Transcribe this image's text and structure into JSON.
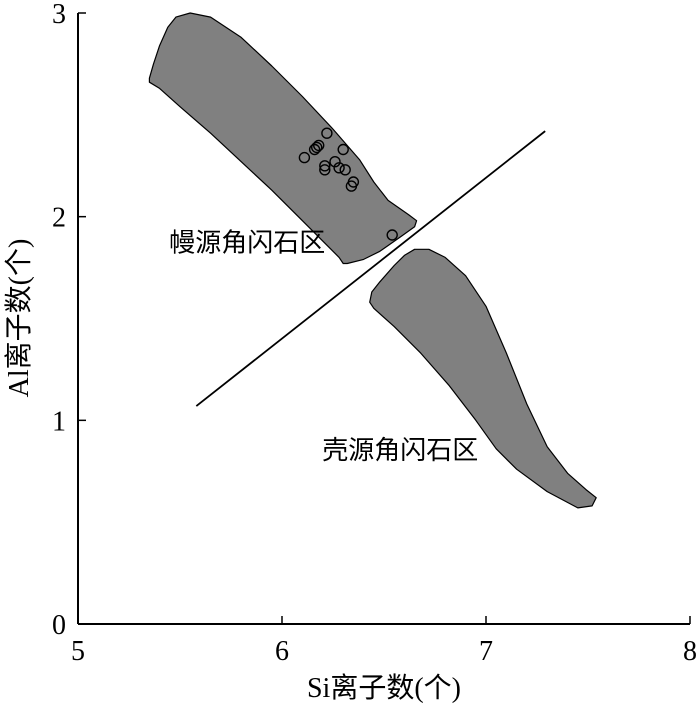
{
  "chart_data": {
    "type": "scatter",
    "xlabel": "Si离子数(个)",
    "ylabel": "Al离子数(个)",
    "xlim": [
      5,
      8
    ],
    "ylim": [
      0,
      3
    ],
    "xticks": [
      5,
      6,
      7,
      8
    ],
    "yticks": [
      0,
      1,
      2,
      3
    ],
    "grid": false,
    "colors": {
      "region_fill": "#808080",
      "stroke": "#000000"
    },
    "regions": [
      {
        "name": "mantle",
        "label": "幔源角闪石区",
        "label_at": [
          5.83,
          1.83
        ],
        "polygon": [
          [
            5.35,
            2.68
          ],
          [
            5.37,
            2.75
          ],
          [
            5.4,
            2.84
          ],
          [
            5.44,
            2.93
          ],
          [
            5.48,
            2.98
          ],
          [
            5.55,
            3.0
          ],
          [
            5.65,
            2.98
          ],
          [
            5.8,
            2.88
          ],
          [
            5.95,
            2.74
          ],
          [
            6.1,
            2.59
          ],
          [
            6.25,
            2.43
          ],
          [
            6.38,
            2.28
          ],
          [
            6.45,
            2.17
          ],
          [
            6.52,
            2.08
          ],
          [
            6.62,
            2.01
          ],
          [
            6.66,
            1.98
          ],
          [
            6.65,
            1.95
          ],
          [
            6.58,
            1.9
          ],
          [
            6.48,
            1.83
          ],
          [
            6.4,
            1.79
          ],
          [
            6.32,
            1.77
          ],
          [
            6.3,
            1.77
          ],
          [
            6.28,
            1.8
          ],
          [
            6.22,
            1.86
          ],
          [
            6.1,
            1.98
          ],
          [
            5.95,
            2.13
          ],
          [
            5.8,
            2.27
          ],
          [
            5.65,
            2.41
          ],
          [
            5.5,
            2.54
          ],
          [
            5.4,
            2.63
          ],
          [
            5.35,
            2.66
          ]
        ]
      },
      {
        "name": "crust",
        "label": "壳源角闪石区",
        "label_at": [
          6.58,
          0.81
        ],
        "polygon": [
          [
            6.43,
            1.58
          ],
          [
            6.44,
            1.63
          ],
          [
            6.48,
            1.68
          ],
          [
            6.55,
            1.76
          ],
          [
            6.6,
            1.81
          ],
          [
            6.65,
            1.84
          ],
          [
            6.72,
            1.84
          ],
          [
            6.8,
            1.8
          ],
          [
            6.9,
            1.71
          ],
          [
            7.0,
            1.56
          ],
          [
            7.1,
            1.33
          ],
          [
            7.2,
            1.08
          ],
          [
            7.3,
            0.87
          ],
          [
            7.4,
            0.74
          ],
          [
            7.49,
            0.66
          ],
          [
            7.54,
            0.62
          ],
          [
            7.52,
            0.58
          ],
          [
            7.45,
            0.57
          ],
          [
            7.3,
            0.65
          ],
          [
            7.15,
            0.76
          ],
          [
            7.05,
            0.86
          ],
          [
            6.95,
            1.0
          ],
          [
            6.82,
            1.17
          ],
          [
            6.68,
            1.33
          ],
          [
            6.55,
            1.46
          ],
          [
            6.45,
            1.55
          ]
        ]
      }
    ],
    "divider": [
      [
        5.58,
        1.07
      ],
      [
        7.29,
        2.42
      ]
    ],
    "series": [
      {
        "x": [
          6.11,
          6.16,
          6.18,
          6.17,
          6.21,
          6.22,
          6.26,
          6.21,
          6.28,
          6.3,
          6.31,
          6.35,
          6.34,
          6.54
        ],
        "y": [
          2.29,
          2.33,
          2.35,
          2.34,
          2.25,
          2.41,
          2.27,
          2.23,
          2.24,
          2.33,
          2.23,
          2.17,
          2.15,
          1.91
        ]
      }
    ]
  }
}
